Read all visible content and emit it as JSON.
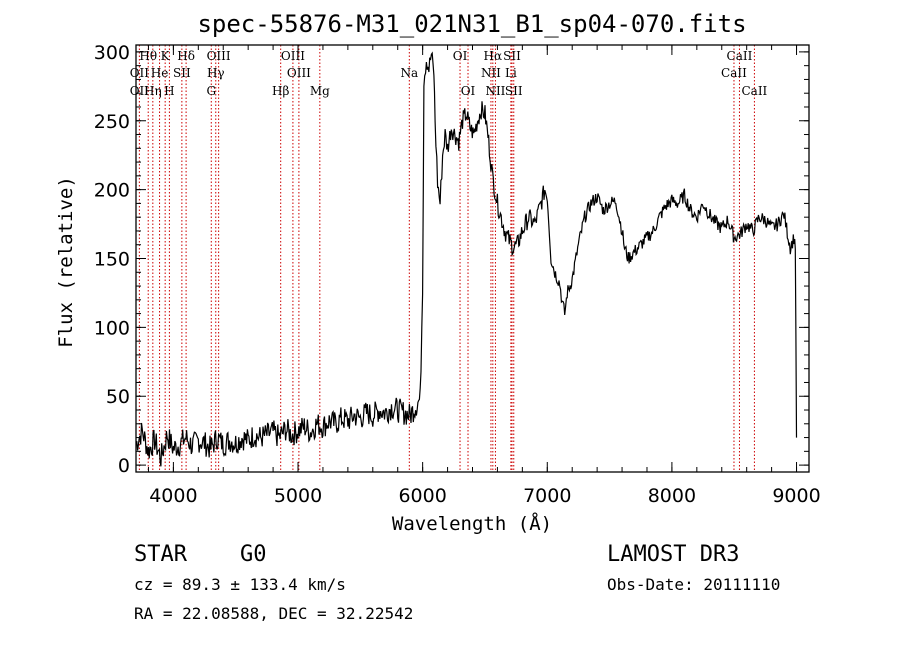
{
  "chart_data": {
    "type": "line",
    "title": "spec-55876-M31_021N31_B1_sp04-070.fits",
    "xlabel": "Wavelength (Å)",
    "ylabel": "Flux (relative)",
    "xlim": [
      3700,
      9100
    ],
    "ylim": [
      -5,
      305
    ],
    "xticks": [
      4000,
      5000,
      6000,
      7000,
      8000,
      9000
    ],
    "yticks": [
      0,
      50,
      100,
      150,
      200,
      250,
      300
    ],
    "series": [
      {
        "name": "flux",
        "x": [
          3700,
          3750,
          3800,
          3850,
          3900,
          3950,
          4000,
          4050,
          4100,
          4150,
          4200,
          4250,
          4300,
          4350,
          4400,
          4450,
          4500,
          4550,
          4600,
          4650,
          4700,
          4750,
          4800,
          4850,
          4900,
          4950,
          5000,
          5050,
          5100,
          5150,
          5200,
          5250,
          5300,
          5350,
          5400,
          5450,
          5500,
          5550,
          5600,
          5650,
          5700,
          5750,
          5800,
          5850,
          5900,
          5950,
          5980,
          6000,
          6010,
          6030,
          6050,
          6070,
          6090,
          6100,
          6120,
          6140,
          6160,
          6180,
          6200,
          6230,
          6260,
          6290,
          6320,
          6350,
          6380,
          6410,
          6440,
          6470,
          6500,
          6530,
          6560,
          6580,
          6600,
          6630,
          6660,
          6700,
          6730,
          6760,
          6800,
          6850,
          6900,
          6950,
          6980,
          7000,
          7030,
          7060,
          7100,
          7120,
          7140,
          7160,
          7200,
          7250,
          7300,
          7350,
          7400,
          7450,
          7500,
          7550,
          7600,
          7620,
          7650,
          7700,
          7750,
          7800,
          7850,
          7900,
          7950,
          8000,
          8050,
          8100,
          8150,
          8200,
          8250,
          8300,
          8350,
          8400,
          8450,
          8500,
          8550,
          8600,
          8650,
          8700,
          8750,
          8800,
          8850,
          8880,
          8900,
          8920,
          8950,
          8980,
          8990,
          9000
        ],
        "y": [
          15,
          25,
          10,
          18,
          5,
          22,
          12,
          15,
          20,
          14,
          18,
          16,
          12,
          20,
          15,
          18,
          16,
          20,
          18,
          22,
          20,
          22,
          24,
          20,
          26,
          22,
          25,
          28,
          24,
          30,
          28,
          32,
          30,
          34,
          32,
          36,
          34,
          38,
          36,
          40,
          38,
          42,
          40,
          38,
          36,
          44,
          48,
          130,
          280,
          295,
          288,
          298,
          285,
          250,
          205,
          190,
          225,
          240,
          230,
          245,
          240,
          235,
          250,
          255,
          245,
          240,
          250,
          258,
          255,
          235,
          210,
          200,
          190,
          180,
          170,
          162,
          158,
          160,
          170,
          180,
          175,
          190,
          200,
          195,
          150,
          140,
          132,
          118,
          110,
          125,
          135,
          160,
          180,
          190,
          195,
          185,
          190,
          192,
          170,
          158,
          150,
          155,
          160,
          165,
          170,
          180,
          188,
          192,
          190,
          196,
          185,
          180,
          190,
          182,
          176,
          172,
          178,
          165,
          168,
          175,
          170,
          180,
          178,
          172,
          175,
          180,
          182,
          172,
          158,
          165,
          160,
          20
        ]
      }
    ],
    "emission_lines": {
      "row1": [
        {
          "label": "Hθ",
          "x": 3798
        },
        {
          "label": "K",
          "x": 3934
        },
        {
          "label": "Hδ",
          "x": 4102
        },
        {
          "label": "OIII",
          "x": 4363
        },
        {
          "label": "OIII",
          "x": 4959
        },
        {
          "label": "OI",
          "x": 6300
        },
        {
          "label": "Hα",
          "x": 6563
        },
        {
          "label": "SII",
          "x": 6717
        },
        {
          "label": "CaII",
          "x": 8542
        }
      ],
      "row2": [
        {
          "label": "OII",
          "x": 3727
        },
        {
          "label": "He",
          "x": 3889
        },
        {
          "label": "SII",
          "x": 4068
        },
        {
          "label": "Hγ",
          "x": 4340
        },
        {
          "label": "OIII",
          "x": 5007
        },
        {
          "label": "Na",
          "x": 5893
        },
        {
          "label": "NII",
          "x": 6548
        },
        {
          "label": "Li",
          "x": 6708
        },
        {
          "label": "CaII",
          "x": 8498
        }
      ],
      "row3": [
        {
          "label": "OII",
          "x": 3727
        },
        {
          "label": "Hη",
          "x": 3835
        },
        {
          "label": "H",
          "x": 3968
        },
        {
          "label": "G",
          "x": 4304
        },
        {
          "label": "Hβ",
          "x": 4861
        },
        {
          "label": "Mg",
          "x": 5175
        },
        {
          "label": "OI",
          "x": 6364
        },
        {
          "label": "NII",
          "x": 6584
        },
        {
          "label": "SII",
          "x": 6731
        },
        {
          "label": "CaII",
          "x": 8662
        }
      ],
      "marker_lines": [
        3727,
        3798,
        3835,
        3889,
        3934,
        3968,
        4068,
        4102,
        4304,
        4340,
        4363,
        4861,
        4959,
        5007,
        5175,
        5893,
        6300,
        6364,
        6548,
        6563,
        6584,
        6708,
        6717,
        6731,
        8498,
        8542,
        8662
      ]
    }
  },
  "info": {
    "class": "STAR",
    "subclass": "G0",
    "survey": "LAMOST DR3",
    "cz": "cz = 89.3 ± 133.4 km/s",
    "obs_date": "Obs-Date: 20111110",
    "radec": "RA =  22.08588, DEC =  32.22542"
  },
  "colors": {
    "line": "#000000",
    "marker": "#cc0000"
  }
}
